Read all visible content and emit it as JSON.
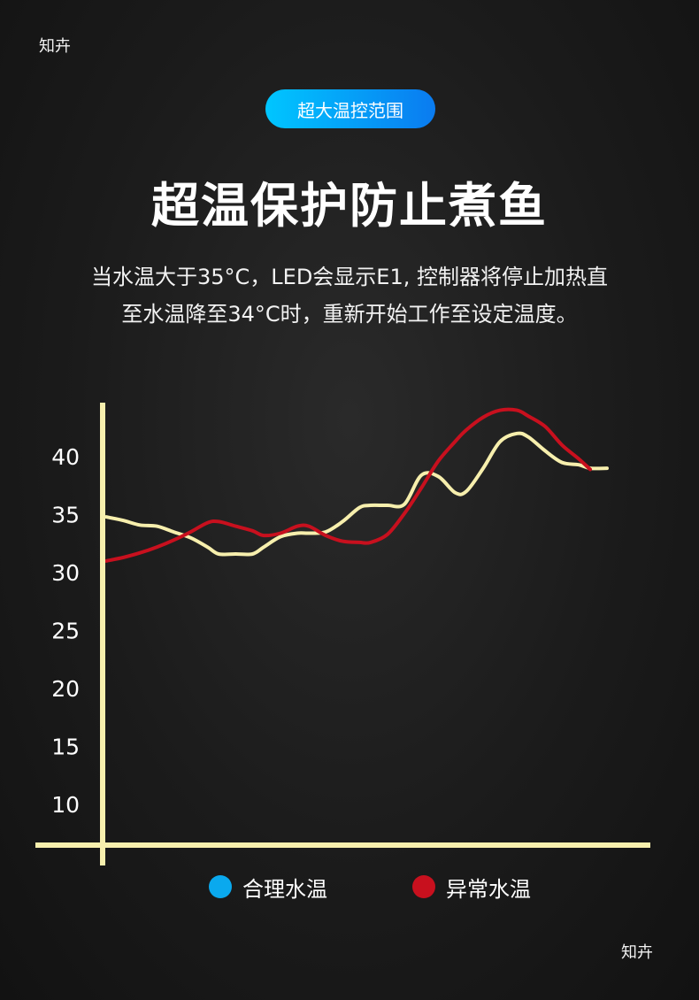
{
  "watermarks": {
    "top_left": "知卉",
    "bottom_right": "知卉"
  },
  "badge": {
    "label": "超大温控范围"
  },
  "heading": {
    "title": "超温保护防止煮鱼"
  },
  "description": {
    "line1": "当水温大于35°C，LED会显示E1, 控制器将停止加热直",
    "line2": "至水温降至34°C时，重新开始工作至设定温度。"
  },
  "colors": {
    "accent_blue": "#0aa9ee",
    "normal_line": "#f7efad",
    "abnormal_line": "#c8101e",
    "axis": "#f7efad"
  },
  "chart_data": {
    "type": "line",
    "title": "",
    "xlabel": "",
    "ylabel": "",
    "y_ticks": [
      40,
      35,
      30,
      25,
      20,
      15,
      10
    ],
    "ylim": [
      6,
      45
    ],
    "xlim": [
      0,
      100
    ],
    "grid": false,
    "legend_position": "bottom-center",
    "series": [
      {
        "name": "合理水温",
        "color": "#f7efad",
        "x": [
          0,
          3,
          6,
          9,
          12,
          15,
          18,
          20,
          23,
          26,
          28,
          31,
          34,
          36,
          39,
          42,
          45,
          47,
          50,
          53,
          56,
          59,
          62,
          64,
          67,
          70,
          73,
          75,
          78,
          81,
          84,
          86,
          89,
          92,
          95,
          97,
          100
        ],
        "y": [
          34.8,
          34.5,
          34.1,
          34.0,
          33.5,
          33.0,
          32.2,
          31.6,
          31.6,
          31.6,
          32.2,
          33.1,
          33.4,
          33.4,
          33.5,
          34.4,
          35.6,
          35.8,
          35.8,
          35.9,
          38.4,
          38.3,
          36.9,
          37.0,
          39.0,
          41.3,
          42.0,
          41.7,
          40.5,
          39.5,
          39.3,
          39.0,
          39.0,
          null,
          null,
          null,
          null
        ]
      },
      {
        "name": "异常水温",
        "color": "#c8101e",
        "x": [
          0,
          3,
          6,
          9,
          12,
          15,
          18,
          20,
          23,
          26,
          28,
          31,
          34,
          36,
          39,
          42,
          45,
          47,
          50,
          53,
          56,
          59,
          62,
          64,
          67,
          70,
          73,
          75,
          78,
          81,
          84,
          86,
          89,
          92,
          95,
          97,
          100
        ],
        "y": [
          31.0,
          31.3,
          31.7,
          32.2,
          32.8,
          33.5,
          34.3,
          34.4,
          34.0,
          33.6,
          33.2,
          33.4,
          34.0,
          34.0,
          33.2,
          32.7,
          32.6,
          32.6,
          33.3,
          35.1,
          37.3,
          39.6,
          41.3,
          42.3,
          43.4,
          44.0,
          44.0,
          43.5,
          42.6,
          41.0,
          39.8,
          38.9,
          null,
          null,
          null,
          null,
          null
        ]
      }
    ]
  }
}
